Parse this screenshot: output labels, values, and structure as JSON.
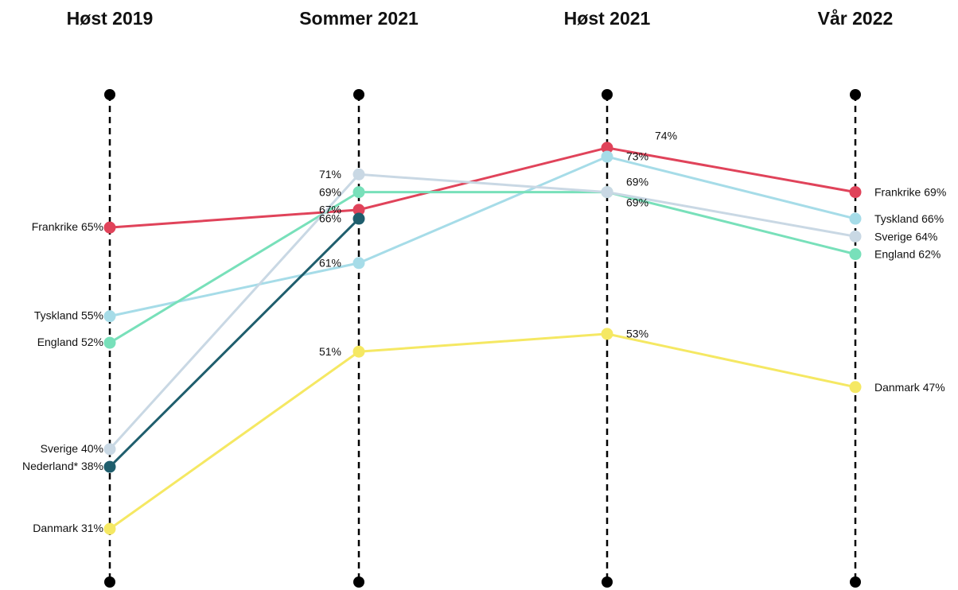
{
  "chart_data": {
    "type": "slope",
    "categories": [
      "Høst 2019",
      "Sommer 2021",
      "Høst 2021",
      "Vår 2022"
    ],
    "ylim": [
      25,
      80
    ],
    "series": [
      {
        "name": "Frankrike",
        "color": "#e0435a",
        "values": [
          65,
          67,
          74,
          69
        ],
        "value_labels": [
          "65%",
          "67%",
          "74%",
          "69%"
        ]
      },
      {
        "name": "Tyskland",
        "color": "#a6dce8",
        "values": [
          55,
          61,
          73,
          66
        ],
        "value_labels": [
          "55%",
          "61%",
          "73%",
          "66%"
        ]
      },
      {
        "name": "England",
        "color": "#78e0ba",
        "values": [
          52,
          69,
          69,
          62
        ],
        "value_labels": [
          "52%",
          "69%",
          "69%",
          "62%"
        ]
      },
      {
        "name": "Sverige",
        "color": "#c9d8e4",
        "values": [
          40,
          71,
          69,
          64
        ],
        "value_labels": [
          "40%",
          "71%",
          "69%",
          "64%"
        ]
      },
      {
        "name": "Nederland*",
        "color": "#1f5e6d",
        "values": [
          38,
          66,
          null,
          null
        ],
        "value_labels": [
          "38%",
          "66%",
          null,
          null
        ]
      },
      {
        "name": "Danmark",
        "color": "#f5e863",
        "values": [
          31,
          51,
          53,
          47
        ],
        "value_labels": [
          "31%",
          "51%",
          "53%",
          "47%"
        ]
      }
    ]
  }
}
